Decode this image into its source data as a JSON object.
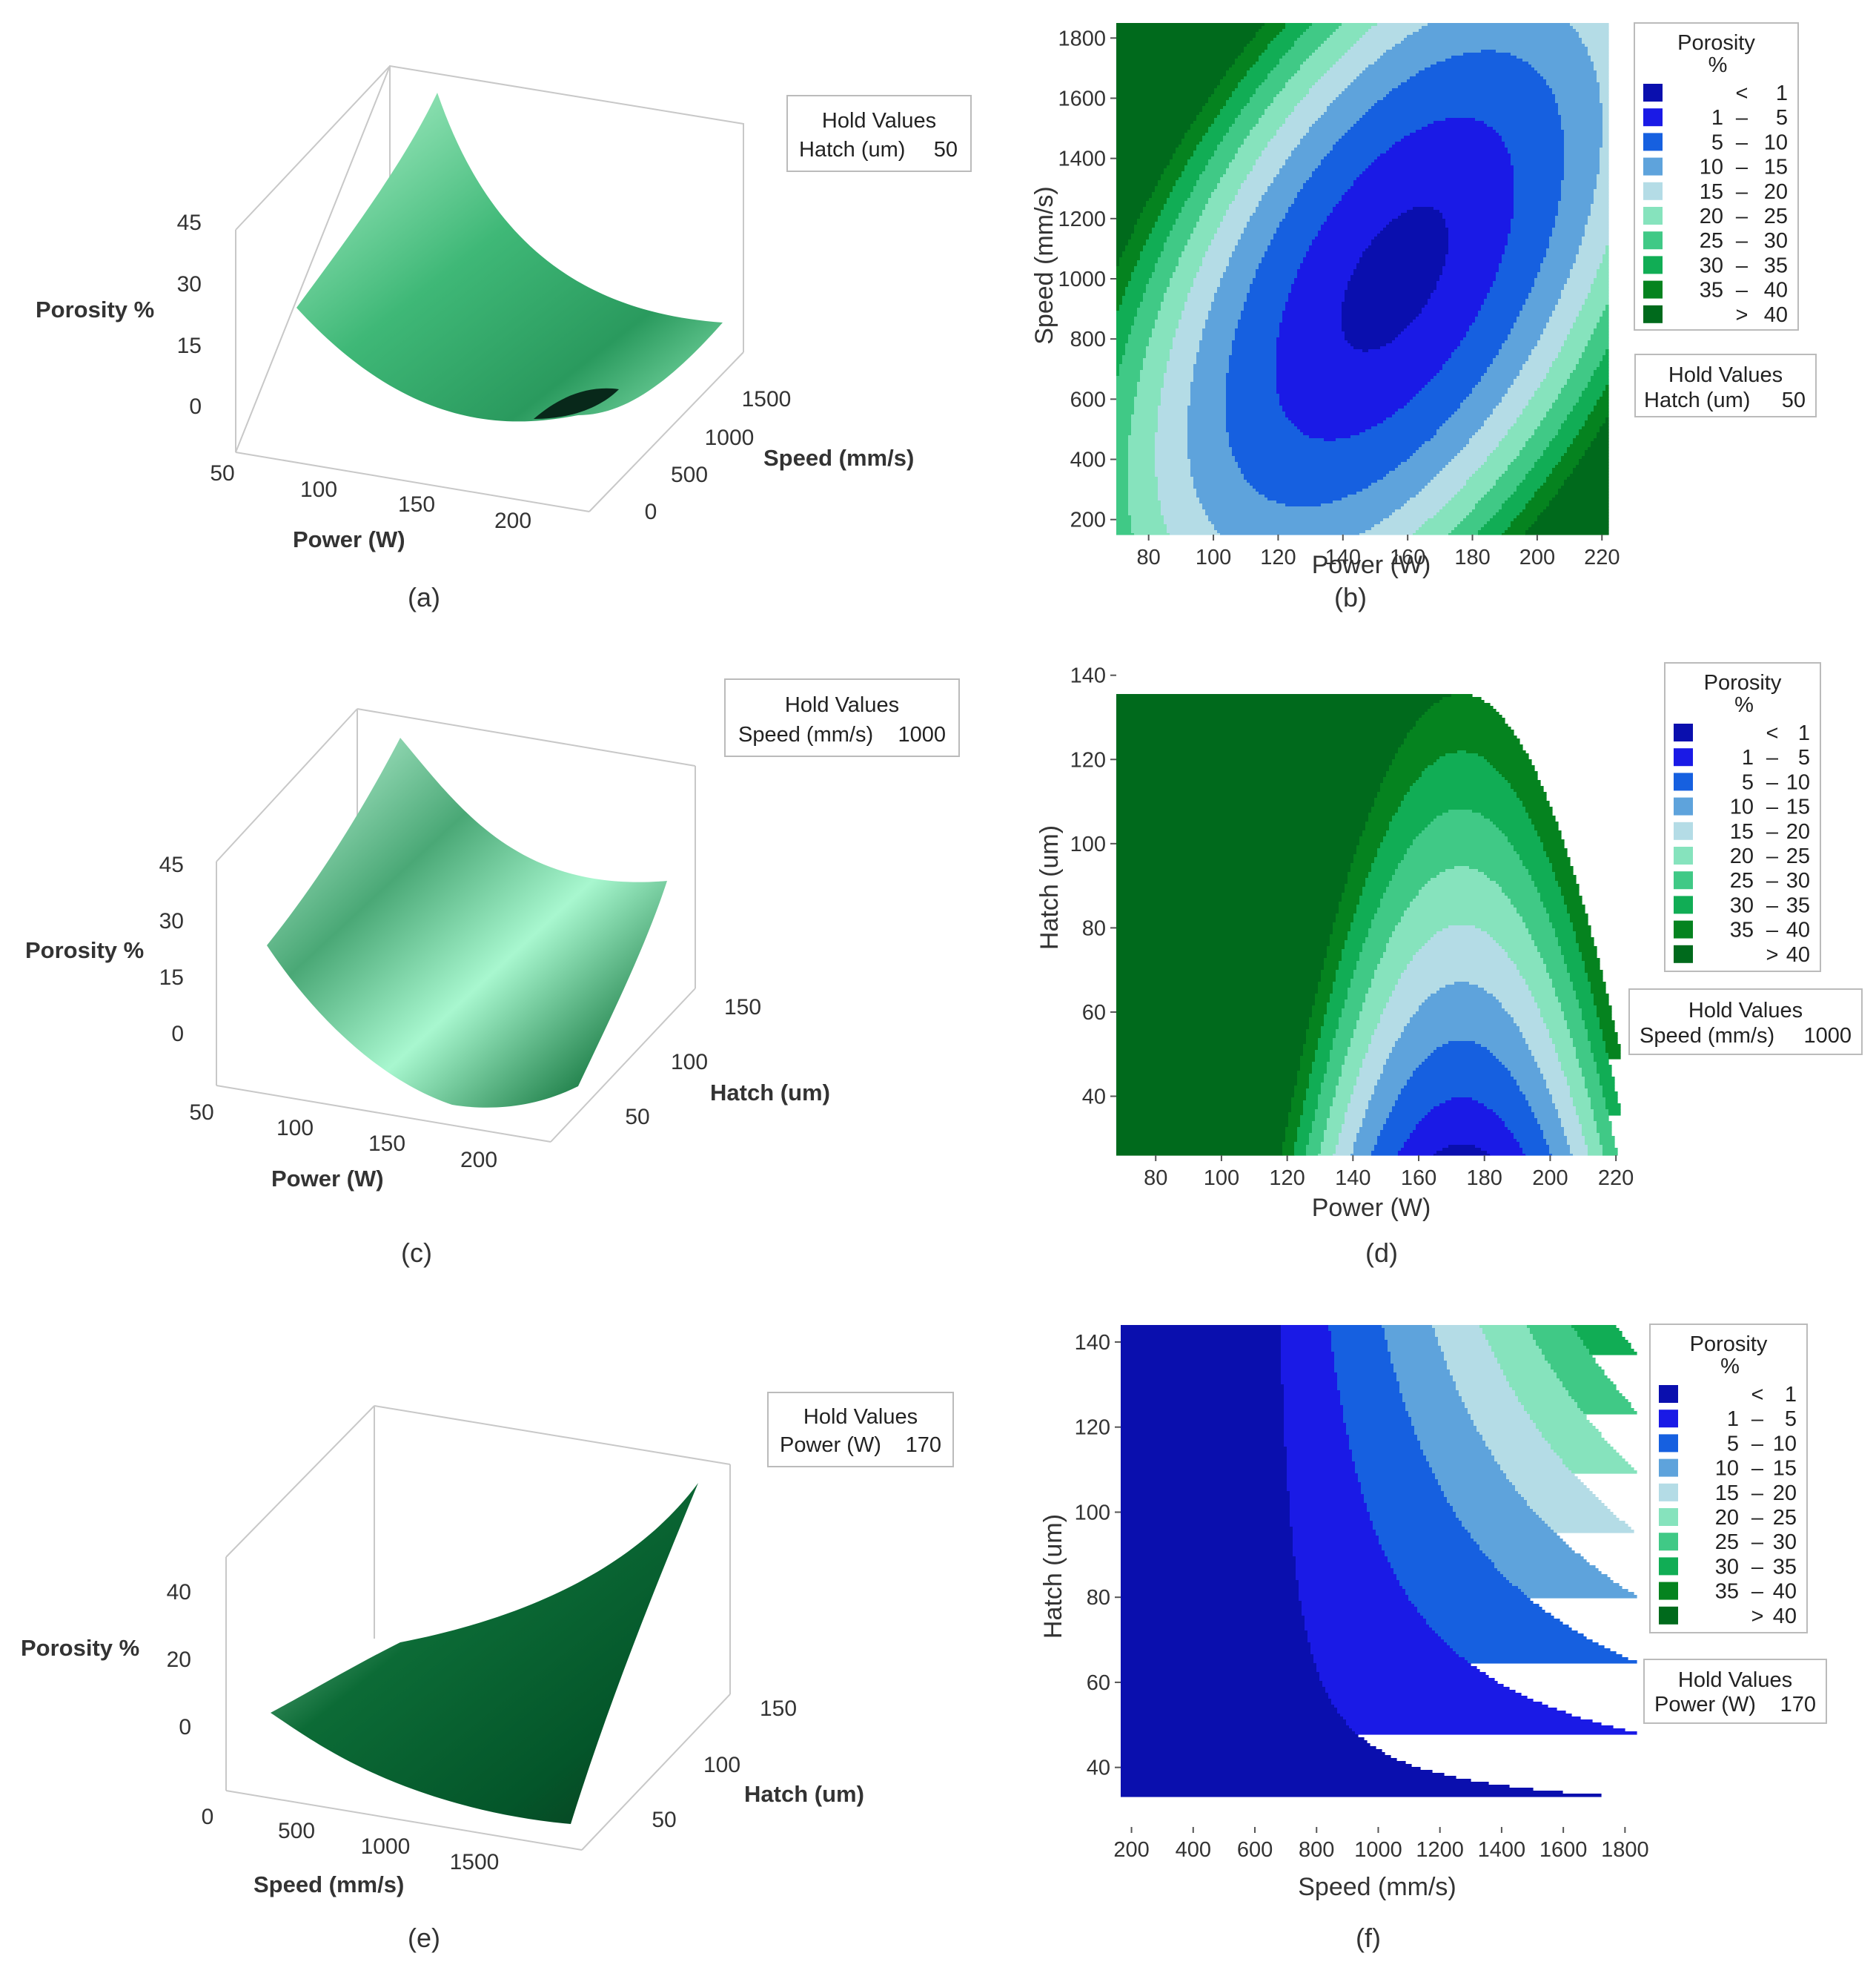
{
  "figure": {
    "panel_labels": [
      "(a)",
      "(b)",
      "(c)",
      "(d)",
      "(e)",
      "(f)"
    ]
  },
  "colors": {
    "background": "#ffffff",
    "axis": "#bfbfbf",
    "text": "#1a1a1a",
    "levels": [
      "#0a0fae",
      "#1a1ae6",
      "#1660e0",
      "#5ea3dc",
      "#b4dce6",
      "#86e3bd",
      "#40c986",
      "#11ad55",
      "#05831f",
      "#006a1c"
    ],
    "surface_light": "#a8f2c8",
    "surface_dark": "#005a2c"
  },
  "chart_data": [
    {
      "id": "a",
      "type": "surface3d",
      "title": "",
      "xlabel": "Power (W)",
      "ylabel": "Speed (mm/s)",
      "zlabel": "Porosity %",
      "x_ticks": [
        "50",
        "100",
        "150",
        "200"
      ],
      "y_ticks": [
        "0",
        "500",
        "1000",
        "1500"
      ],
      "z_ticks": [
        "0",
        "15",
        "30",
        "45"
      ],
      "hold": {
        "title": "Hold Values",
        "name": "Hatch (um)",
        "value": "50"
      },
      "corner_values": {
        "xmin_ymin": 22,
        "xmax_ymin": 6,
        "xmin_ymax": 48,
        "xmax_ymax": 12,
        "center": 1
      }
    },
    {
      "id": "b",
      "type": "contour",
      "xlabel": "Power (W)",
      "ylabel": "Speed (mm/s)",
      "x_ticks": [
        80,
        100,
        120,
        140,
        160,
        180,
        200,
        220
      ],
      "y_ticks": [
        200,
        400,
        600,
        800,
        1000,
        1200,
        1400,
        1600,
        1800
      ],
      "xlim": [
        70,
        222
      ],
      "ylim": [
        150,
        1850
      ],
      "model": {
        "kind": "ellipse",
        "cx": 156,
        "cy": 1000,
        "sx": 13.8,
        "sy": 200,
        "rho": 0.55
      },
      "legend": {
        "title": [
          "Porosity",
          "%"
        ],
        "entries": [
          {
            "lo": "",
            "sep": "<",
            "hi": "1"
          },
          {
            "lo": "1",
            "sep": "–",
            "hi": "5"
          },
          {
            "lo": "5",
            "sep": "–",
            "hi": "10"
          },
          {
            "lo": "10",
            "sep": "–",
            "hi": "15"
          },
          {
            "lo": "15",
            "sep": "–",
            "hi": "20"
          },
          {
            "lo": "20",
            "sep": "–",
            "hi": "25"
          },
          {
            "lo": "25",
            "sep": "–",
            "hi": "30"
          },
          {
            "lo": "30",
            "sep": "–",
            "hi": "35"
          },
          {
            "lo": "35",
            "sep": "–",
            "hi": "40"
          },
          {
            "lo": "",
            "sep": ">",
            "hi": "40"
          }
        ]
      },
      "hold": {
        "title": "Hold Values",
        "name": "Hatch (um)",
        "value": "50"
      }
    },
    {
      "id": "c",
      "type": "surface3d",
      "xlabel": "Power (W)",
      "ylabel": "Hatch (um)",
      "zlabel": "Porosity %",
      "x_ticks": [
        "50",
        "100",
        "150",
        "200"
      ],
      "y_ticks": [
        "50",
        "100",
        "150"
      ],
      "z_ticks": [
        "0",
        "15",
        "30",
        "45"
      ],
      "hold": {
        "title": "Hold Values",
        "name": "Speed (mm/s)",
        "value": "1000"
      },
      "corner_values": {
        "xmin_ymin": 22,
        "xmax_ymin": 2,
        "xmin_ymax": 48,
        "xmax_ymax": 24,
        "center": 3
      }
    },
    {
      "id": "d",
      "type": "contour",
      "xlabel": "Power (W)",
      "ylabel": "Hatch (um)",
      "x_ticks": [
        80,
        100,
        120,
        140,
        160,
        180,
        200,
        220
      ],
      "y_ticks": [
        40,
        60,
        80,
        100,
        120,
        140
      ],
      "xlim": [
        68,
        222
      ],
      "ylim": [
        26,
        144
      ],
      "model": {
        "kind": "parabola",
        "a": 0.0133,
        "peak_x": 173,
        "b": 0.365,
        "ref_y": 26
      },
      "legend": {
        "title": [
          "Porosity",
          "%"
        ],
        "entries": [
          {
            "lo": "",
            "sep": "<",
            "hi": "1"
          },
          {
            "lo": "1",
            "sep": "–",
            "hi": "5"
          },
          {
            "lo": "5",
            "sep": "–",
            "hi": "10"
          },
          {
            "lo": "10",
            "sep": "–",
            "hi": "15"
          },
          {
            "lo": "15",
            "sep": "–",
            "hi": "20"
          },
          {
            "lo": "20",
            "sep": "–",
            "hi": "25"
          },
          {
            "lo": "25",
            "sep": "–",
            "hi": "30"
          },
          {
            "lo": "30",
            "sep": "–",
            "hi": "35"
          },
          {
            "lo": "35",
            "sep": "–",
            "hi": "40"
          },
          {
            "lo": "",
            "sep": ">",
            "hi": "40"
          }
        ]
      },
      "hold": {
        "title": "Hold Values",
        "name": "Speed (mm/s)",
        "value": "1000"
      }
    },
    {
      "id": "e",
      "type": "surface3d",
      "xlabel": "Speed (mm/s)",
      "ylabel": "Hatch (um)",
      "zlabel": "Porosity %",
      "x_ticks": [
        "0",
        "500",
        "1000",
        "1500"
      ],
      "y_ticks": [
        "50",
        "100",
        "150"
      ],
      "z_ticks": [
        "0",
        "20",
        "40"
      ],
      "hold": {
        "title": "Hold Values",
        "name": "Power (W)",
        "value": "170"
      },
      "corner_values": {
        "xmin_ymin": 8,
        "xmax_ymin": 0,
        "xmin_ymax": 10,
        "xmax_ymax": 52,
        "center": 3
      }
    },
    {
      "id": "f",
      "type": "contour",
      "xlabel": "Speed (mm/s)",
      "ylabel": "Hatch (um)",
      "x_ticks": [
        200,
        400,
        600,
        800,
        1000,
        1200,
        1400,
        1600,
        1800
      ],
      "y_ticks": [
        40,
        60,
        80,
        100,
        120,
        140
      ],
      "xlim": [
        165,
        1840
      ],
      "ylim": [
        26,
        144
      ],
      "model": {
        "kind": "hyperbolic",
        "x0": 630,
        "y0": 28,
        "k": 6000,
        "g": 1.15
      },
      "legend": {
        "title": [
          "Porosity",
          "%"
        ],
        "entries": [
          {
            "lo": "",
            "sep": "<",
            "hi": "1"
          },
          {
            "lo": "1",
            "sep": "–",
            "hi": "5"
          },
          {
            "lo": "5",
            "sep": "–",
            "hi": "10"
          },
          {
            "lo": "10",
            "sep": "–",
            "hi": "15"
          },
          {
            "lo": "15",
            "sep": "–",
            "hi": "20"
          },
          {
            "lo": "20",
            "sep": "–",
            "hi": "25"
          },
          {
            "lo": "25",
            "sep": "–",
            "hi": "30"
          },
          {
            "lo": "30",
            "sep": "–",
            "hi": "35"
          },
          {
            "lo": "35",
            "sep": "–",
            "hi": "40"
          },
          {
            "lo": "",
            "sep": ">",
            "hi": "40"
          }
        ]
      },
      "hold": {
        "title": "Hold Values",
        "name": "Power (W)",
        "value": "170"
      }
    }
  ]
}
